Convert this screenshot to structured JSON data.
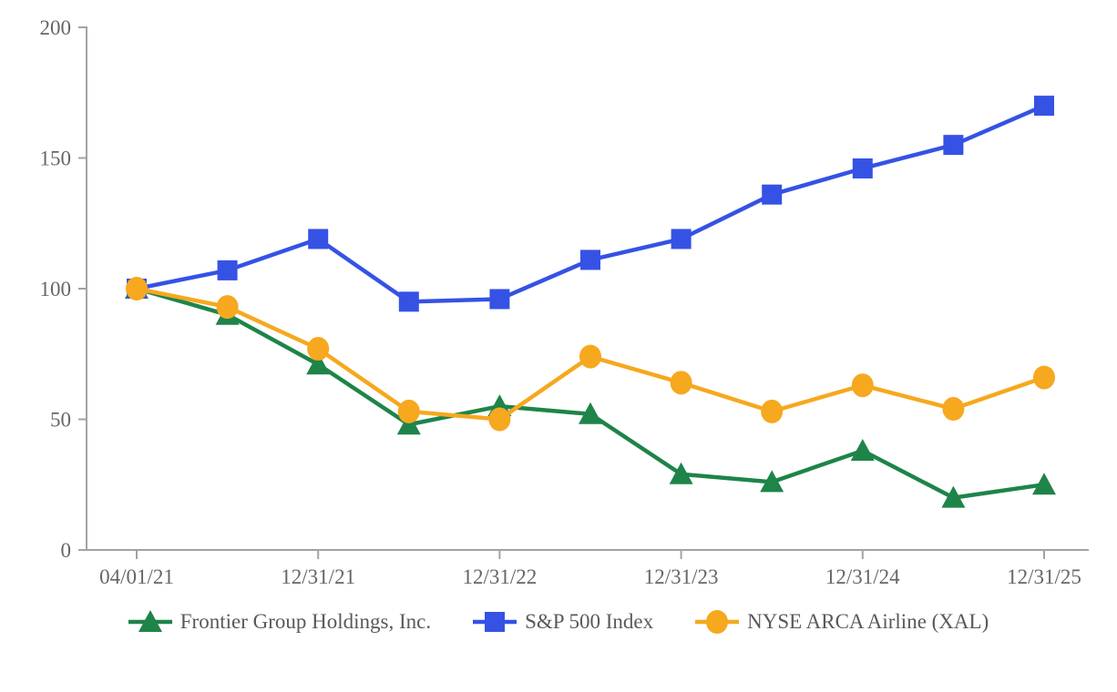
{
  "chart_data": {
    "type": "line",
    "title": "",
    "xlabel": "",
    "ylabel": "",
    "x_tick_labels": [
      "04/01/21",
      "12/31/21",
      "12/31/22",
      "12/31/23",
      "12/31/24",
      "12/31/25"
    ],
    "x_tick_point_indices": [
      0,
      2,
      4,
      6,
      8,
      10
    ],
    "num_points": 11,
    "x_spacing_note": "11 equally spaced semi-annual points; only year-end ticks labeled",
    "ylim": [
      0,
      200
    ],
    "y_ticks": [
      0,
      50,
      100,
      150,
      200
    ],
    "grid": false,
    "legend_position": "bottom-center",
    "axis_color": "#A3A3A3",
    "label_color": "#666666",
    "series": [
      {
        "name": "Frontier Group Holdings, Inc.",
        "color": "#1E8449",
        "marker": "triangle",
        "values": [
          100,
          90,
          71,
          48,
          55,
          52,
          29,
          26,
          38,
          20,
          25
        ]
      },
      {
        "name": "S&P 500 Index",
        "color": "#3552E5",
        "marker": "square",
        "values": [
          100,
          107,
          119,
          95,
          96,
          111,
          119,
          136,
          146,
          155,
          170
        ]
      },
      {
        "name": "NYSE ARCA Airline (XAL)",
        "color": "#F6A81F",
        "marker": "circle",
        "values": [
          100,
          93,
          77,
          53,
          50,
          74,
          64,
          53,
          63,
          54,
          66
        ]
      }
    ]
  }
}
